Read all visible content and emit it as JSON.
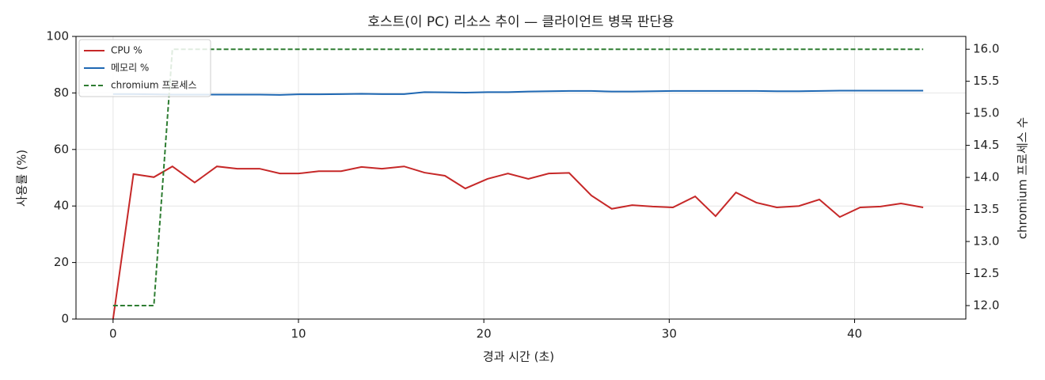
{
  "chart_data": {
    "type": "line",
    "title": "호스트(이 PC) 리소스 추이 — 클라이언트 병목 판단용",
    "xlabel": "경과 시간 (초)",
    "ylabel": "사용률 (%)",
    "y2label": "chromium 프로세스 수",
    "x": [
      0,
      1.1,
      2.2,
      3.2,
      4.4,
      5.6,
      6.7,
      7.9,
      9.0,
      10.0,
      11.1,
      12.3,
      13.4,
      14.5,
      15.7,
      16.8,
      17.9,
      19.0,
      20.2,
      21.3,
      22.4,
      23.5,
      24.6,
      25.8,
      26.9,
      28.0,
      29.1,
      30.2,
      31.4,
      32.5,
      33.6,
      34.7,
      35.8,
      37.0,
      38.1,
      39.2,
      40.3,
      41.4,
      42.5,
      43.7
    ],
    "series": [
      {
        "name": "CPU %",
        "color": "#c62828",
        "linestyle": "solid",
        "values": [
          0,
          51.3,
          50.2,
          54,
          48.3,
          54,
          53.2,
          53.2,
          51.5,
          51.5,
          52.3,
          52.3,
          53.8,
          53.2,
          54,
          51.8,
          50.7,
          46.2,
          49.6,
          51.5,
          49.6,
          51.5,
          51.7,
          43.7,
          39,
          40.3,
          39.8,
          39.5,
          43.4,
          36.4,
          44.8,
          41.2,
          39.5,
          40,
          42.3,
          36.1,
          39.5,
          39.8,
          40.9,
          39.5
        ]
      },
      {
        "name": "메모리 %",
        "color": "#1f68b3",
        "linestyle": "solid",
        "values": [
          79.6,
          79.6,
          79.5,
          79.4,
          79.4,
          79.4,
          79.4,
          79.4,
          79.3,
          79.5,
          79.5,
          79.6,
          79.7,
          79.6,
          79.6,
          80.3,
          80.2,
          80.1,
          80.3,
          80.3,
          80.5,
          80.6,
          80.7,
          80.7,
          80.5,
          80.5,
          80.6,
          80.7,
          80.7,
          80.7,
          80.7,
          80.7,
          80.6,
          80.6,
          80.7,
          80.8,
          80.8,
          80.8,
          80.8,
          80.8
        ]
      },
      {
        "name": "chromium 프로세스",
        "color": "#2e7d32",
        "linestyle": "dashed",
        "axis": "y2",
        "values": [
          12,
          12,
          12,
          16,
          16,
          16,
          16,
          16,
          16,
          16,
          16,
          16,
          16,
          16,
          16,
          16,
          16,
          16,
          16,
          16,
          16,
          16,
          16,
          16,
          16,
          16,
          16,
          16,
          16,
          16,
          16,
          16,
          16,
          16,
          16,
          16,
          16,
          16,
          16,
          16
        ]
      }
    ],
    "xlim": [
      -2,
      46
    ],
    "xticks": [
      0,
      10,
      20,
      30,
      40
    ],
    "ylim": [
      0,
      100
    ],
    "yticks": [
      0,
      20,
      40,
      60,
      80,
      100
    ],
    "y2lim": [
      11.79,
      16.2
    ],
    "y2ticks": [
      {
        "value": 12,
        "label": "12.0"
      },
      {
        "value": 12.5,
        "label": "12.5"
      },
      {
        "value": 13,
        "label": "13.0"
      },
      {
        "value": 13.5,
        "label": "13.5"
      },
      {
        "value": 14,
        "label": "14.0"
      },
      {
        "value": 14.5,
        "label": "14.5"
      },
      {
        "value": 15,
        "label": "15.0"
      },
      {
        "value": 15.5,
        "label": "15.5"
      },
      {
        "value": 16,
        "label": "16.0"
      }
    ],
    "grid": true,
    "legend": "upper left"
  }
}
